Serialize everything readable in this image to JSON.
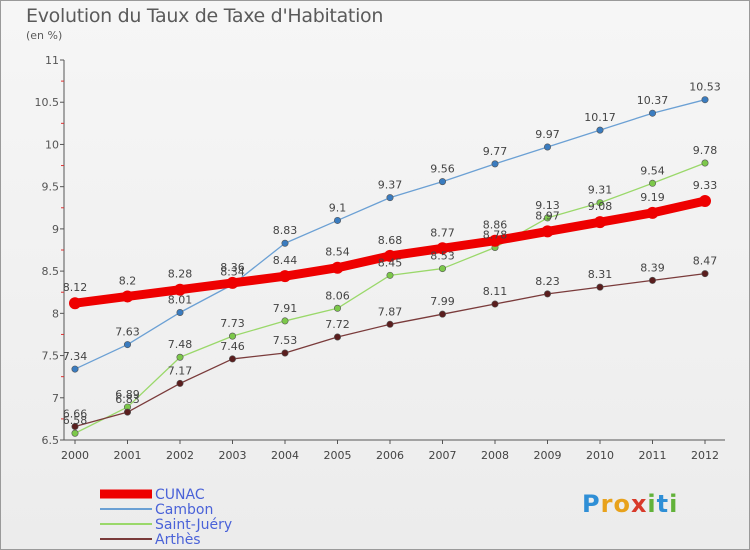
{
  "title": "Evolution du Taux de Taxe d'Habitation",
  "subtitle": "(en %)",
  "logo": {
    "text": "Proxiti",
    "letters": [
      {
        "ch": "P",
        "color": "#2f8fd6"
      },
      {
        "ch": "r",
        "color": "#e8a21c"
      },
      {
        "ch": "o",
        "color": "#e8a21c"
      },
      {
        "ch": "x",
        "color": "#d83a2a"
      },
      {
        "ch": "i",
        "color": "#62b23a"
      },
      {
        "ch": "t",
        "color": "#2f8fd6"
      },
      {
        "ch": "i",
        "color": "#62b23a"
      }
    ]
  },
  "chart_data": {
    "type": "line",
    "title": "Evolution du Taux de Taxe d'Habitation",
    "ylabel": "(en %)",
    "ylim": [
      6.5,
      11
    ],
    "yticks": [
      6.5,
      7,
      7.5,
      8,
      8.5,
      9,
      9.5,
      10,
      10.5,
      11
    ],
    "ytick_labels": [
      "6.5",
      "7",
      "7.5",
      "8",
      "8.5",
      "9",
      "9.5",
      "10",
      "10.5",
      "11"
    ],
    "x": [
      "2000",
      "2001",
      "2002",
      "2003",
      "2004",
      "2005",
      "2006",
      "2007",
      "2008",
      "2009",
      "2010",
      "2011",
      "2012"
    ],
    "grid": false,
    "legend_position": "bottom-left",
    "series": [
      {
        "name": "CUNAC",
        "color": "#ee0000",
        "labelcolor": "#444444",
        "width": 9,
        "marker": 6,
        "values": [
          8.12,
          8.2,
          8.28,
          8.36,
          8.44,
          8.54,
          8.68,
          8.77,
          8.86,
          8.97,
          9.08,
          9.19,
          9.33
        ],
        "labels": [
          "8.12",
          "8.2",
          "8.28",
          "8.36",
          "8.44",
          "8.54",
          "8.68",
          "8.77",
          "8.86",
          "8.97",
          "9.08",
          "9.19",
          "9.33"
        ]
      },
      {
        "name": "Cambon",
        "color": "#6ba0d4",
        "marker_color": "#3a7cc0",
        "labelcolor": "#444444",
        "width": 1.3,
        "marker": 3.2,
        "values": [
          7.34,
          7.63,
          8.01,
          8.34,
          8.83,
          9.1,
          9.37,
          9.56,
          9.77,
          9.97,
          10.17,
          10.37,
          10.53
        ],
        "labels": [
          "7.34",
          "7.63",
          "8.01",
          "8.34",
          "8.83",
          "9.1",
          "9.37",
          "9.56",
          "9.77",
          "9.97",
          "10.17",
          "10.37",
          "10.53"
        ]
      },
      {
        "name": "Saint-Juéry",
        "color": "#9ad86a",
        "marker_color": "#7cc84a",
        "labelcolor": "#444444",
        "width": 1.3,
        "marker": 3.2,
        "values": [
          6.58,
          6.89,
          7.48,
          7.73,
          7.91,
          8.06,
          8.45,
          8.53,
          8.78,
          9.13,
          9.31,
          9.54,
          9.78
        ],
        "labels": [
          "6.58",
          "6.89",
          "7.48",
          "7.73",
          "7.91",
          "8.06",
          "8.45",
          "8.53",
          "8.78",
          "9.13",
          "9.31",
          "9.54",
          "9.78"
        ]
      },
      {
        "name": "Arthès",
        "color": "#7a3b3b",
        "marker_color": "#5a1e1e",
        "labelcolor": "#444444",
        "width": 1.3,
        "marker": 3.2,
        "values": [
          6.66,
          6.83,
          7.17,
          7.46,
          7.53,
          7.72,
          7.87,
          7.99,
          8.11,
          8.23,
          8.31,
          8.39,
          8.47
        ],
        "labels": [
          "6.66",
          "6.83",
          "7.17",
          "7.46",
          "7.53",
          "7.72",
          "7.87",
          "7.99",
          "8.11",
          "8.23",
          "8.31",
          "8.39",
          "8.47"
        ]
      }
    ],
    "legend": [
      {
        "name": "CUNAC",
        "color": "#ee0000",
        "text_color": "#4a62d8",
        "thickness": 9
      },
      {
        "name": "Cambon",
        "color": "#6ba0d4",
        "text_color": "#4a62d8",
        "thickness": 2
      },
      {
        "name": "Saint-Juéry",
        "color": "#9ad86a",
        "text_color": "#4a62d8",
        "thickness": 2
      },
      {
        "name": "Arthès",
        "color": "#7a3b3b",
        "text_color": "#4a62d8",
        "thickness": 2
      }
    ]
  }
}
